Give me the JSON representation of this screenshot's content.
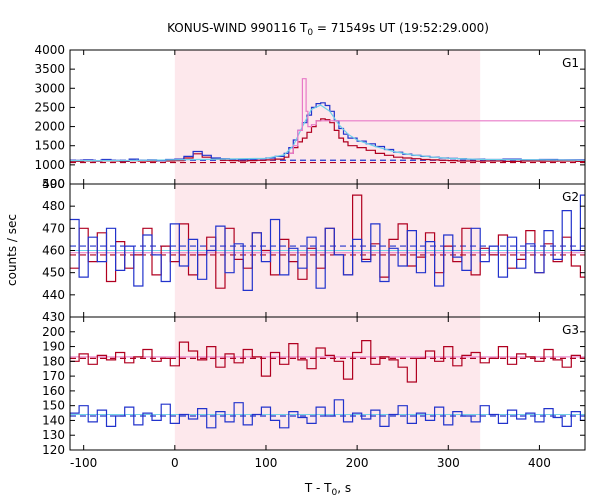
{
  "chart_data": {
    "type": "line",
    "title_main": "KONUS-WIND 990116 T",
    "title_sub": "0",
    "title_rest": " = 71549s UT (19:52:29.000)",
    "xlabel_main": "T - T",
    "xlabel_sub": "0",
    "xlabel_rest": ", s",
    "ylabel": "counts / sec",
    "xlim": [
      -115,
      450
    ],
    "xticks": [
      -100,
      0,
      100,
      200,
      300,
      400
    ],
    "xtick_labels": [
      "-100",
      "0",
      "100",
      "200",
      "300",
      "400"
    ],
    "highlight_interval": [
      0,
      335
    ],
    "colors": {
      "red": "#b00020",
      "blue": "#2233cc",
      "cyan": "#6fd0e8",
      "pink": "#e87ac8",
      "highlight": "#fde8ec"
    },
    "panels": [
      {
        "label": "G1",
        "ylim": [
          500,
          4000
        ],
        "yticks": [
          500,
          1000,
          1500,
          2000,
          2500,
          3000,
          3500,
          4000
        ],
        "ytick_labels": [
          "500",
          "1000",
          "1500",
          "2000",
          "2500",
          "3000",
          "3500",
          "4000"
        ],
        "background": [
          {
            "series": "red",
            "level": 1060
          },
          {
            "series": "blue",
            "level": 1120
          }
        ],
        "series": [
          {
            "color": "red",
            "x": [
              -115,
              -100,
              -90,
              -80,
              -70,
              -60,
              -50,
              -40,
              -30,
              -20,
              -10,
              0,
              10,
              20,
              30,
              40,
              50,
              60,
              70,
              80,
              90,
              100,
              110,
              120,
              125,
              130,
              135,
              140,
              145,
              150,
              155,
              160,
              165,
              170,
              175,
              180,
              185,
              190,
              200,
              210,
              220,
              230,
              240,
              250,
              260,
              270,
              280,
              290,
              300,
              310,
              320,
              330,
              340,
              360,
              380,
              400,
              420,
              440,
              450
            ],
            "y": [
              1090,
              1100,
              1095,
              1105,
              1100,
              1090,
              1110,
              1100,
              1095,
              1105,
              1100,
              1110,
              1180,
              1290,
              1200,
              1150,
              1120,
              1110,
              1100,
              1110,
              1120,
              1130,
              1150,
              1200,
              1300,
              1450,
              1600,
              1700,
              1850,
              2000,
              2150,
              2200,
              2180,
              2100,
              1900,
              1700,
              1600,
              1500,
              1450,
              1380,
              1300,
              1250,
              1200,
              1180,
              1160,
              1140,
              1130,
              1120,
              1110,
              1100,
              1100,
              1095,
              1100,
              1090,
              1100,
              1095,
              1100,
              1090,
              1090
            ]
          },
          {
            "color": "blue",
            "x": [
              -115,
              -100,
              -90,
              -80,
              -70,
              -60,
              -50,
              -40,
              -30,
              -20,
              -10,
              0,
              10,
              20,
              30,
              40,
              50,
              60,
              70,
              80,
              90,
              100,
              110,
              120,
              125,
              130,
              135,
              140,
              145,
              150,
              155,
              160,
              165,
              170,
              175,
              180,
              185,
              190,
              200,
              210,
              220,
              230,
              240,
              250,
              260,
              270,
              280,
              290,
              300,
              310,
              320,
              330,
              340,
              360,
              380,
              400,
              420,
              440,
              450
            ],
            "y": [
              1120,
              1130,
              1110,
              1140,
              1120,
              1110,
              1150,
              1120,
              1130,
              1110,
              1140,
              1150,
              1220,
              1350,
              1250,
              1180,
              1160,
              1150,
              1140,
              1150,
              1160,
              1180,
              1220,
              1300,
              1450,
              1650,
              1900,
              2100,
              2300,
              2500,
              2600,
              2620,
              2550,
              2400,
              2150,
              1950,
              1800,
              1700,
              1620,
              1550,
              1480,
              1400,
              1330,
              1280,
              1250,
              1220,
              1200,
              1180,
              1170,
              1160,
              1150,
              1150,
              1140,
              1150,
              1130,
              1140,
              1130,
              1130,
              1130
            ]
          },
          {
            "color": "cyan",
            "x": [
              -115,
              -100,
              -50,
              0,
              50,
              100,
              120,
              130,
              140,
              150,
              160,
              170,
              180,
              190,
              200,
              220,
              240,
              260,
              280,
              300,
              340,
              400,
              450
            ],
            "y": [
              1110,
              1110,
              1115,
              1130,
              1150,
              1170,
              1260,
              1500,
              2000,
              2450,
              2560,
              2400,
              2050,
              1800,
              1650,
              1480,
              1350,
              1260,
              1210,
              1170,
              1140,
              1130,
              1120
            ]
          },
          {
            "color": "pink",
            "x": [
              125,
              130,
              135,
              140,
              142,
              144,
              146,
              150,
              155
            ],
            "y": [
              1300,
              1500,
              1900,
              3250,
              3250,
              2400,
              2000,
              2050,
              2150
            ]
          }
        ]
      },
      {
        "label": "G2",
        "ylim": [
          430,
          490
        ],
        "yticks": [
          430,
          440,
          450,
          460,
          470,
          480,
          490
        ],
        "ytick_labels": [
          "430",
          "440",
          "450",
          "460",
          "470",
          "480",
          "490"
        ],
        "background": [
          {
            "series": "red",
            "level": 458
          },
          {
            "series": "blue",
            "level": 462
          }
        ],
        "fits": [
          {
            "color": "cyan",
            "level": 460
          },
          {
            "color": "pink",
            "level": 459
          }
        ],
        "series": [
          {
            "color": "red",
            "x": [
              -115,
              -105,
              -95,
              -85,
              -75,
              -65,
              -55,
              -45,
              -35,
              -25,
              -15,
              -5,
              5,
              15,
              25,
              35,
              45,
              55,
              65,
              75,
              85,
              95,
              105,
              115,
              125,
              135,
              145,
              155,
              165,
              175,
              185,
              195,
              205,
              215,
              225,
              235,
              245,
              255,
              265,
              275,
              285,
              295,
              305,
              315,
              325,
              335,
              345,
              355,
              365,
              375,
              385,
              395,
              405,
              415,
              425,
              435,
              445
            ],
            "y": [
              452,
              470,
              455,
              468,
              446,
              464,
              452,
              458,
              470,
              449,
              462,
              455,
              472,
              449,
              458,
              466,
              443,
              470,
              456,
              452,
              468,
              460,
              449,
              465,
              455,
              447,
              461,
              452,
              470,
              458,
              449,
              485,
              456,
              463,
              448,
              465,
              472,
              453,
              457,
              468,
              450,
              462,
              455,
              470,
              449,
              461,
              458,
              467,
              452,
              456,
              469,
              450,
              463,
              455,
              466,
              453,
              448
            ]
          },
          {
            "color": "blue",
            "x": [
              -115,
              -105,
              -95,
              -85,
              -75,
              -65,
              -55,
              -45,
              -35,
              -25,
              -15,
              -5,
              5,
              15,
              25,
              35,
              45,
              55,
              65,
              75,
              85,
              95,
              105,
              115,
              125,
              135,
              145,
              155,
              165,
              175,
              185,
              195,
              205,
              215,
              225,
              235,
              245,
              255,
              265,
              275,
              285,
              295,
              305,
              315,
              325,
              335,
              345,
              355,
              365,
              375,
              385,
              395,
              405,
              415,
              425,
              435,
              445
            ],
            "y": [
              474,
              448,
              466,
              455,
              470,
              451,
              462,
              444,
              467,
              458,
              446,
              472,
              453,
              465,
              447,
              460,
              471,
              450,
              463,
              442,
              468,
              455,
              474,
              449,
              461,
              452,
              466,
              443,
              470,
              458,
              449,
              465,
              455,
              472,
              446,
              461,
              453,
              469,
              450,
              464,
              444,
              467,
              457,
              451,
              470,
              455,
              462,
              448,
              466,
              452,
              463,
              450,
              469,
              456,
              478,
              460,
              485
            ]
          }
        ]
      },
      {
        "label": "G3",
        "ylim": [
          120,
          210
        ],
        "yticks": [
          120,
          130,
          140,
          150,
          160,
          170,
          180,
          190,
          200
        ],
        "ytick_labels": [
          "120",
          "130",
          "140",
          "150",
          "160",
          "170",
          "180",
          "190",
          "200"
        ],
        "background": [
          {
            "series": "red",
            "level": 182
          },
          {
            "series": "blue",
            "level": 143
          }
        ],
        "fits": [
          {
            "color": "cyan",
            "level": 144
          },
          {
            "color": "pink",
            "level": 183
          }
        ],
        "series": [
          {
            "color": "red",
            "x": [
              -115,
              -105,
              -95,
              -85,
              -75,
              -65,
              -55,
              -45,
              -35,
              -25,
              -15,
              -5,
              5,
              15,
              25,
              35,
              45,
              55,
              65,
              75,
              85,
              95,
              105,
              115,
              125,
              135,
              145,
              155,
              165,
              175,
              185,
              195,
              205,
              215,
              225,
              235,
              245,
              255,
              265,
              275,
              285,
              295,
              305,
              315,
              325,
              335,
              345,
              355,
              365,
              375,
              385,
              395,
              405,
              415,
              425,
              435,
              445
            ],
            "y": [
              180,
              185,
              178,
              184,
              181,
              186,
              179,
              183,
              188,
              180,
              182,
              177,
              193,
              187,
              181,
              190,
              176,
              185,
              179,
              188,
              183,
              170,
              186,
              178,
              192,
              181,
              175,
              189,
              184,
              180,
              168,
              186,
              194,
              178,
              183,
              181,
              176,
              166,
              182,
              187,
              180,
              190,
              177,
              184,
              186,
              179,
              182,
              190,
              178,
              185,
              183,
              180,
              188,
              181,
              176,
              184,
              182
            ]
          },
          {
            "color": "blue",
            "x": [
              -115,
              -105,
              -95,
              -85,
              -75,
              -65,
              -55,
              -45,
              -35,
              -25,
              -15,
              -5,
              5,
              15,
              25,
              35,
              45,
              55,
              65,
              75,
              85,
              95,
              105,
              115,
              125,
              135,
              145,
              155,
              165,
              175,
              185,
              195,
              205,
              215,
              225,
              235,
              245,
              255,
              265,
              275,
              285,
              295,
              305,
              315,
              325,
              335,
              345,
              355,
              365,
              375,
              385,
              395,
              405,
              415,
              425,
              435,
              445
            ],
            "y": [
              145,
              150,
              139,
              147,
              136,
              143,
              149,
              137,
              145,
              140,
              151,
              138,
              144,
              141,
              148,
              135,
              146,
              139,
              152,
              137,
              144,
              149,
              140,
              135,
              146,
              142,
              138,
              149,
              143,
              154,
              139,
              145,
              141,
              147,
              136,
              144,
              150,
              138,
              145,
              140,
              149,
              137,
              146,
              143,
              139,
              150,
              144,
              138,
              147,
              141,
              145,
              139,
              148,
              142,
              136,
              146,
              140
            ]
          }
        ]
      }
    ]
  }
}
